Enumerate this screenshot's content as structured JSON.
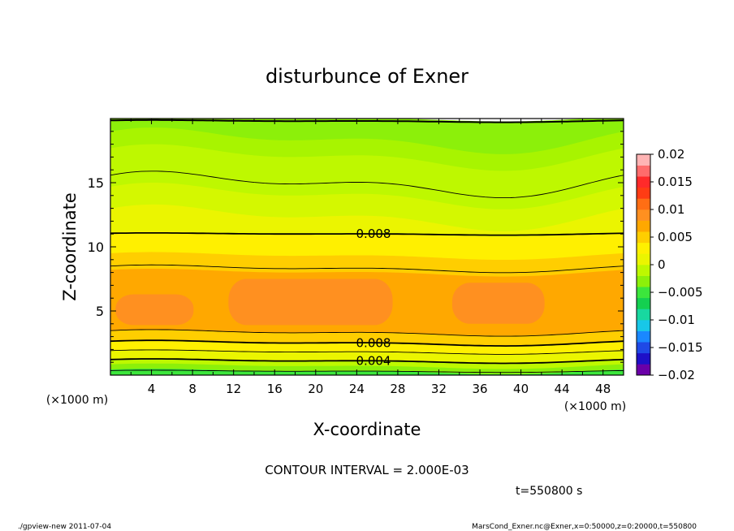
{
  "chart_data": {
    "type": "heatmap",
    "title": "disturbunce of Exner",
    "xlabel": "X-coordinate",
    "ylabel": "Z-coordinate",
    "x_unit_left": "(×1000 m)",
    "x_unit_right": "(×1000 m)",
    "xlim": [
      0,
      50
    ],
    "ylim": [
      0,
      20
    ],
    "xticks": [
      4,
      8,
      12,
      16,
      20,
      24,
      28,
      32,
      36,
      40,
      44,
      48
    ],
    "yticks": [
      5,
      10,
      15
    ],
    "contour_interval_text": "CONTOUR INTERVAL = 2.000E-03",
    "time_text": "t=550800 s",
    "colorbar": {
      "ticks": [
        "0.02",
        "0.015",
        "0.01",
        "0.005",
        "0",
        "−0.005",
        "−0.01",
        "−0.015",
        "−0.02"
      ],
      "range": [
        -0.02,
        0.02
      ],
      "colors": [
        "#6a00a8",
        "#1e10c8",
        "#1f49e6",
        "#1a88ff",
        "#18c7e8",
        "#18d8a0",
        "#14d050",
        "#3ce63c",
        "#8cf00a",
        "#bef800",
        "#ebf500",
        "#fff000",
        "#ffce00",
        "#ffa800",
        "#ff9020",
        "#ff6e14",
        "#ff3c14",
        "#ff2a2a",
        "#ff6c6c",
        "#ffb4b4"
      ]
    },
    "contour_labels": [
      {
        "text": "0.008",
        "x": 25,
        "z": 11.0
      },
      {
        "text": "0.008",
        "x": 25,
        "z": 2.5
      },
      {
        "text": "0.004",
        "x": 25,
        "z": 1.1
      }
    ],
    "bands": [
      {
        "z_top": 20.0,
        "color": "#8cf00a"
      },
      {
        "z_top": 19.2,
        "color": "#8cf00a"
      },
      {
        "z_top": 18.3,
        "color": "#a8f400"
      },
      {
        "z_top": 17.0,
        "color": "#bef800"
      },
      {
        "z_top": 14.0,
        "color": "#d4f800"
      },
      {
        "z_top": 12.3,
        "color": "#ebf500"
      },
      {
        "z_top": 11.0,
        "color": "#fff000"
      },
      {
        "z_top": 9.3,
        "color": "#ffce00"
      },
      {
        "z_top": 8.0,
        "color": "#ffa800"
      },
      {
        "z_top": 3.3,
        "color": "#ffce00"
      },
      {
        "z_top": 2.5,
        "color": "#fff000"
      },
      {
        "z_top": 1.8,
        "color": "#ebf500"
      },
      {
        "z_top": 1.1,
        "color": "#bef800"
      },
      {
        "z_top": 0.7,
        "color": "#8cf00a"
      },
      {
        "z_top": 0.3,
        "color": "#3ce63c"
      }
    ],
    "high_cells": [
      {
        "x_center": 4.3,
        "z_center": 5.1,
        "half_width_x": 3.8,
        "half_height_z": 1.2,
        "color": "#ff9020"
      },
      {
        "x_center": 19.5,
        "z_center": 5.7,
        "half_width_x": 8.0,
        "half_height_z": 1.8,
        "color": "#ff9020"
      },
      {
        "x_center": 37.8,
        "z_center": 5.6,
        "half_width_x": 4.5,
        "half_height_z": 1.6,
        "color": "#ff9020"
      }
    ]
  },
  "footer": {
    "left": "./gpview-new  2011-07-04",
    "right": "MarsCond_Exner.nc@Exner,x=0:50000,z=0:20000,t=550800"
  }
}
